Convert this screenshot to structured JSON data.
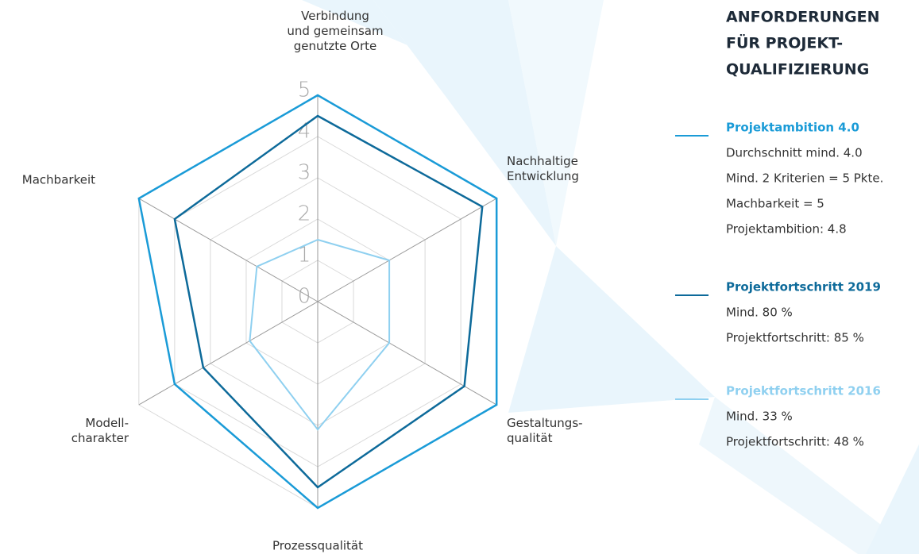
{
  "chart_data": {
    "type": "radar",
    "categories": [
      "Verbindung\nund gemeinsam\ngenutzte Orte",
      "Nachhaltige\nEntwicklung",
      "Gestaltungs-\nqualität",
      "Prozessqualität",
      "Modell-\ncharakter",
      "Machbarkeit"
    ],
    "rlim": [
      0,
      5
    ],
    "rticks": [
      0,
      1,
      2,
      3,
      4,
      5
    ],
    "panel_title": [
      "ANFORDERUNGEN",
      "FÜR PROJEKT-",
      "QUALIFIZIERUNG"
    ],
    "series": [
      {
        "name": "Projektambition 4.0",
        "color": "#1a9bd7",
        "values": [
          5,
          5,
          5,
          5,
          4,
          5
        ],
        "notes": [
          "Durchschnitt mind. 4.0",
          "Mind. 2 Kriterien = 5 Pkte.",
          "Machbarkeit = 5",
          "Projektambition: 4.8"
        ]
      },
      {
        "name": "Projektfortschritt 2019",
        "color": "#0d6a9a",
        "values": [
          4.5,
          4.6,
          4.1,
          4.5,
          3.2,
          4.0
        ],
        "notes": [
          "Mind. 80 %",
          "Projektfortschritt: 85 %"
        ]
      },
      {
        "name": "Projektfortschritt 2016",
        "color": "#8fd0f0",
        "values": [
          1.5,
          2.0,
          2.0,
          3.1,
          1.9,
          1.7
        ],
        "notes": [
          "Mind. 33 %",
          "Projektfortschritt: 48 %"
        ]
      }
    ]
  }
}
